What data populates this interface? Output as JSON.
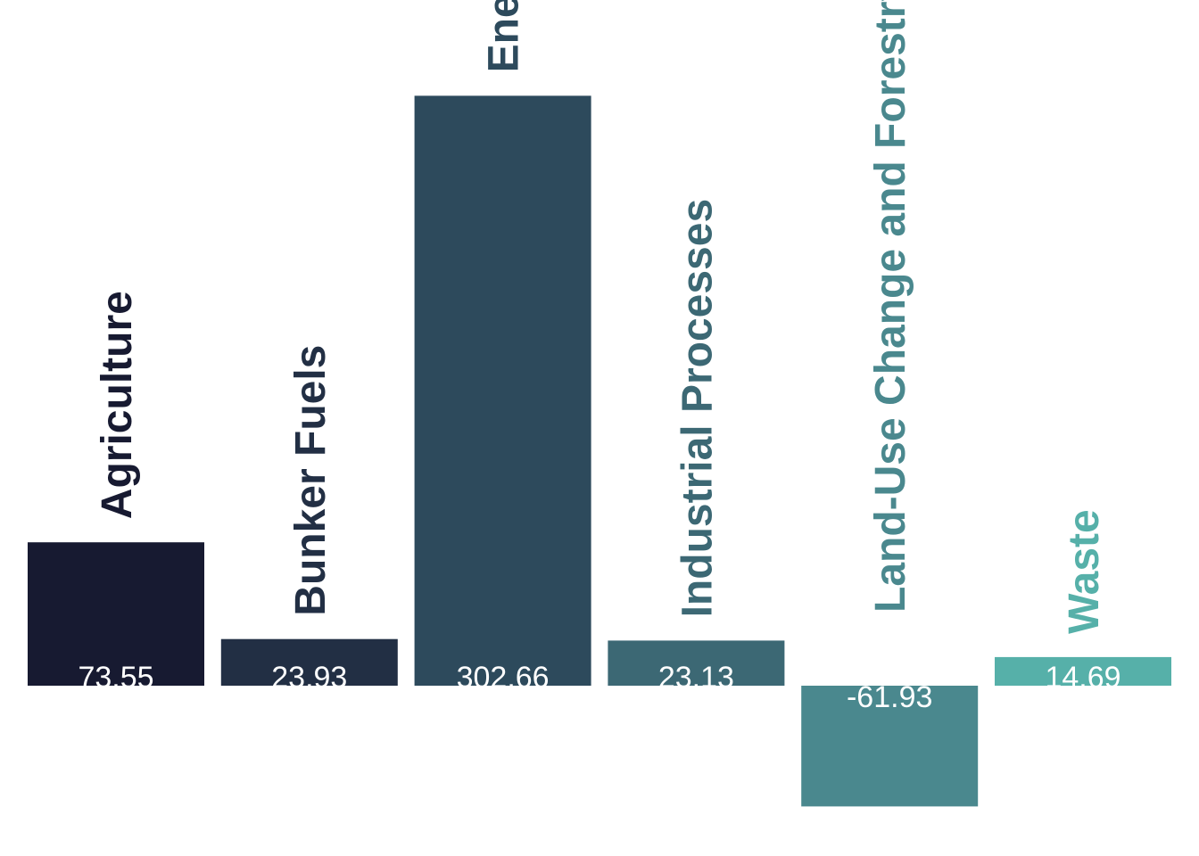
{
  "chart_data": {
    "type": "bar",
    "categories": [
      "Agriculture",
      "Bunker Fuels",
      "Energy",
      "Industrial Processes",
      "Land-Use Change and Forestry",
      "Waste"
    ],
    "values": [
      73.55,
      23.93,
      302.66,
      23.13,
      -61.93,
      14.69
    ],
    "value_labels": [
      "73.55",
      "23.93",
      "302.66",
      "23.13",
      "-61.93",
      "14.69"
    ],
    "colors": [
      "#171a31",
      "#222f44",
      "#2d4a5c",
      "#3c6874",
      "#4a888e",
      "#56b0a9"
    ],
    "title": "",
    "xlabel": "",
    "ylabel": "",
    "ylim": [
      -91,
      350
    ],
    "grid": false,
    "legend": "none"
  }
}
